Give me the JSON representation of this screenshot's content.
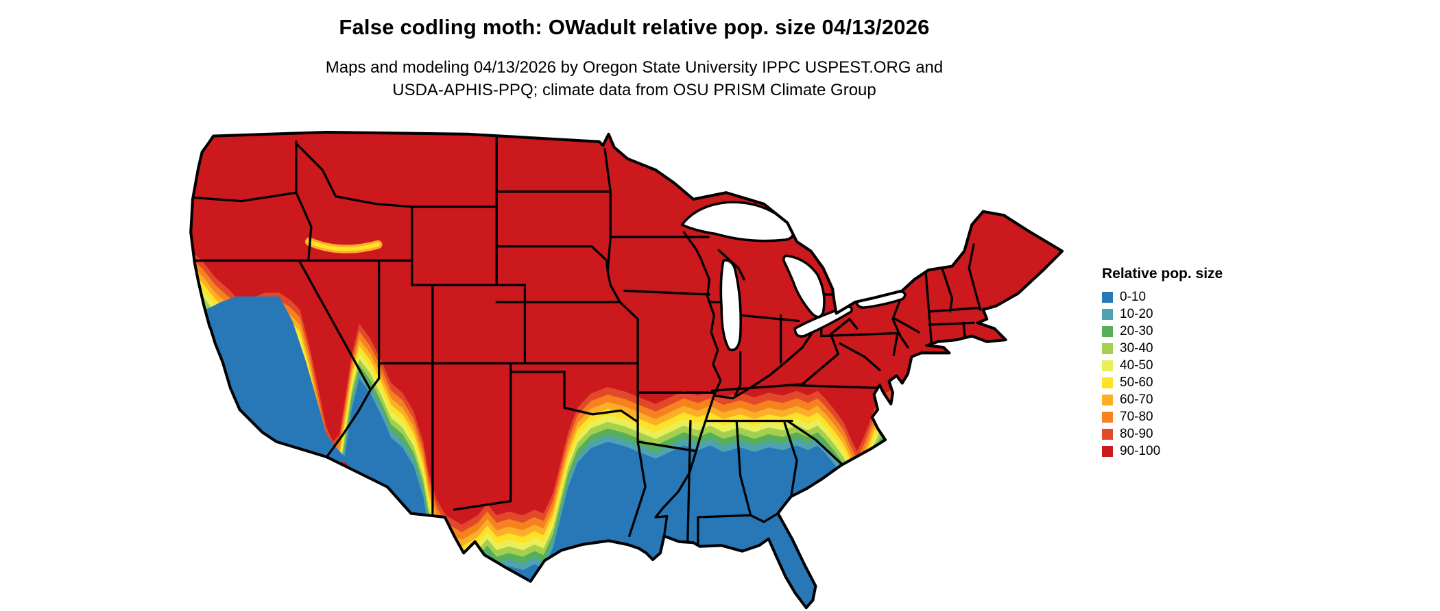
{
  "header": {
    "title": "False codling moth: OWadult relative pop. size 04/13/2026",
    "subtitle_line1": "Maps and modeling 04/13/2026 by Oregon State University IPPC USPEST.ORG and",
    "subtitle_line2": "USDA-APHIS-PPQ; climate data from OSU PRISM Climate Group"
  },
  "legend": {
    "title": "Relative pop. size",
    "items": [
      {
        "label": "0-10",
        "color": "#2878b8"
      },
      {
        "label": "10-20",
        "color": "#4fa3af"
      },
      {
        "label": "20-30",
        "color": "#57b059"
      },
      {
        "label": "30-40",
        "color": "#a5cf4f"
      },
      {
        "label": "40-50",
        "color": "#e8ef58"
      },
      {
        "label": "50-60",
        "color": "#fee227"
      },
      {
        "label": "60-70",
        "color": "#fbae28"
      },
      {
        "label": "70-80",
        "color": "#f5811f"
      },
      {
        "label": "80-90",
        "color": "#e2492a"
      },
      {
        "label": "90-100",
        "color": "#cc191d"
      }
    ]
  }
}
